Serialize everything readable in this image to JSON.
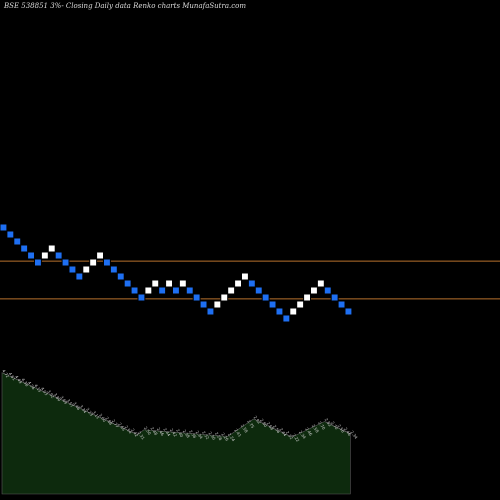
{
  "title": "BSE 538851 3%- Closing Daily data Renko charts MunafaSutra.com",
  "colors": {
    "background": "#000000",
    "brick_up": "#ffffff",
    "brick_down": "#1e6ff2",
    "brick_outline": "#000000",
    "level_line": "#b8722c",
    "volume_fill": "#0d2a0d",
    "volume_stroke": "#5a5a5a",
    "volume_text": "#cfcfcf"
  },
  "chart_data": {
    "type": "renko",
    "title": "BSE 538851 3%- Closing Daily data Renko charts MunafaSutra.com",
    "bricks": [
      {
        "level": 19,
        "dir": "down"
      },
      {
        "level": 18,
        "dir": "down"
      },
      {
        "level": 17,
        "dir": "down"
      },
      {
        "level": 16,
        "dir": "down"
      },
      {
        "level": 15,
        "dir": "down"
      },
      {
        "level": 14,
        "dir": "down"
      },
      {
        "level": 15,
        "dir": "up"
      },
      {
        "level": 16,
        "dir": "up"
      },
      {
        "level": 15,
        "dir": "down"
      },
      {
        "level": 14,
        "dir": "down"
      },
      {
        "level": 13,
        "dir": "down"
      },
      {
        "level": 12,
        "dir": "down"
      },
      {
        "level": 13,
        "dir": "up"
      },
      {
        "level": 14,
        "dir": "up"
      },
      {
        "level": 15,
        "dir": "up"
      },
      {
        "level": 14,
        "dir": "down"
      },
      {
        "level": 13,
        "dir": "down"
      },
      {
        "level": 12,
        "dir": "down"
      },
      {
        "level": 11,
        "dir": "down"
      },
      {
        "level": 10,
        "dir": "down"
      },
      {
        "level": 9,
        "dir": "down"
      },
      {
        "level": 10,
        "dir": "up"
      },
      {
        "level": 11,
        "dir": "up"
      },
      {
        "level": 10,
        "dir": "down"
      },
      {
        "level": 11,
        "dir": "up"
      },
      {
        "level": 10,
        "dir": "down"
      },
      {
        "level": 11,
        "dir": "up"
      },
      {
        "level": 10,
        "dir": "down"
      },
      {
        "level": 9,
        "dir": "down"
      },
      {
        "level": 8,
        "dir": "down"
      },
      {
        "level": 7,
        "dir": "down"
      },
      {
        "level": 8,
        "dir": "up"
      },
      {
        "level": 9,
        "dir": "up"
      },
      {
        "level": 10,
        "dir": "up"
      },
      {
        "level": 11,
        "dir": "up"
      },
      {
        "level": 12,
        "dir": "up"
      },
      {
        "level": 11,
        "dir": "down"
      },
      {
        "level": 10,
        "dir": "down"
      },
      {
        "level": 9,
        "dir": "down"
      },
      {
        "level": 8,
        "dir": "down"
      },
      {
        "level": 7,
        "dir": "down"
      },
      {
        "level": 6,
        "dir": "down"
      },
      {
        "level": 7,
        "dir": "up"
      },
      {
        "level": 8,
        "dir": "up"
      },
      {
        "level": 9,
        "dir": "up"
      },
      {
        "level": 10,
        "dir": "up"
      },
      {
        "level": 11,
        "dir": "up"
      },
      {
        "level": 10,
        "dir": "down"
      },
      {
        "level": 9,
        "dir": "down"
      },
      {
        "level": 8,
        "dir": "down"
      },
      {
        "level": 7,
        "dir": "down"
      }
    ],
    "horizontal_levels": [
      {
        "level": 14.2
      },
      {
        "level": 8.8
      }
    ],
    "volume_labels": [
      "4.72",
      "4.61",
      "4.49",
      "4.38",
      "4.26",
      "4.15",
      "4.03",
      "3.92",
      "3.80",
      "3.69",
      "3.57",
      "3.46",
      "3.34",
      "3.23",
      "3.11",
      "3.00",
      "2.88",
      "2.77",
      "2.65",
      "2.54",
      "2.42",
      "2.31",
      "2.50",
      "2.48",
      "2.46",
      "2.44",
      "2.42",
      "2.40",
      "2.38",
      "2.36",
      "2.34",
      "2.32",
      "2.30",
      "2.28",
      "2.26",
      "2.24",
      "2.41",
      "2.58",
      "2.75",
      "2.92",
      "2.80",
      "2.68",
      "2.56",
      "2.44",
      "2.32",
      "2.22",
      "2.34",
      "2.46",
      "2.58",
      "2.70",
      "2.82",
      "2.70",
      "2.58",
      "2.46",
      "2.34"
    ],
    "volume_values": [
      4.72,
      4.61,
      4.49,
      4.38,
      4.26,
      4.15,
      4.03,
      3.92,
      3.8,
      3.69,
      3.57,
      3.46,
      3.34,
      3.23,
      3.11,
      3.0,
      2.88,
      2.77,
      2.65,
      2.54,
      2.42,
      2.31,
      2.5,
      2.48,
      2.46,
      2.44,
      2.42,
      2.4,
      2.38,
      2.36,
      2.34,
      2.32,
      2.3,
      2.28,
      2.26,
      2.24,
      2.41,
      2.58,
      2.75,
      2.92,
      2.8,
      2.68,
      2.56,
      2.44,
      2.32,
      2.22,
      2.34,
      2.46,
      2.58,
      2.7,
      2.82,
      2.7,
      2.58,
      2.46,
      2.34
    ],
    "grid": false
  }
}
